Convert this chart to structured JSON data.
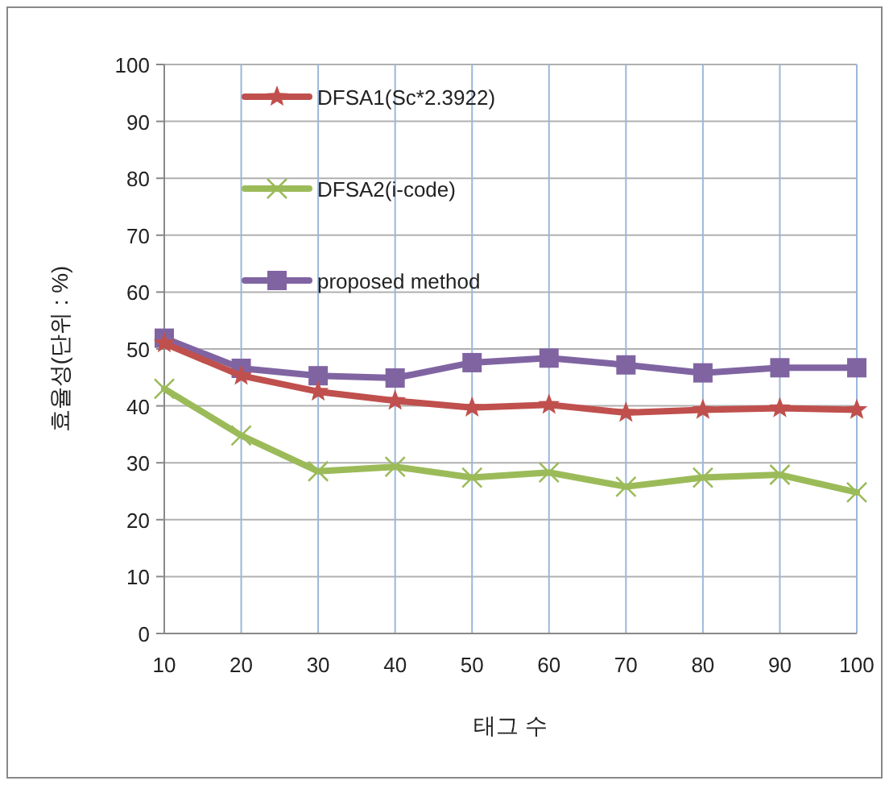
{
  "chart_data": {
    "type": "line",
    "x": [
      10,
      20,
      30,
      40,
      50,
      60,
      70,
      80,
      90,
      100
    ],
    "xlabel": "태그 수",
    "ylabel": "효율성(단위 : %)",
    "xlim": [
      10,
      100
    ],
    "xticks": [
      10,
      20,
      30,
      40,
      50,
      60,
      70,
      80,
      90,
      100
    ],
    "ylim": [
      0,
      100
    ],
    "yticks": [
      0,
      10,
      20,
      30,
      40,
      50,
      60,
      70,
      80,
      90,
      100
    ],
    "grid": true,
    "legend": "top left",
    "line_style": "solid",
    "series": [
      {
        "name": "DFSA1(Sc*2.3922)",
        "color": "#c0504d",
        "marker": "star",
        "values": [
          51,
          45.3,
          42.5,
          40.9,
          39.7,
          40.2,
          38.8,
          39.3,
          39.6,
          39.3
        ]
      },
      {
        "name": "DFSA2(i-code)",
        "color": "#9bbb59",
        "marker": "cross",
        "values": [
          43,
          34.8,
          28.5,
          29.3,
          27.4,
          28.3,
          25.8,
          27.4,
          27.9,
          24.8
        ]
      },
      {
        "name": "proposed method",
        "color": "#8064a2",
        "marker": "square",
        "values": [
          51.9,
          46.6,
          45.3,
          44.9,
          47.6,
          48.4,
          47.2,
          45.8,
          46.7,
          46.7
        ]
      }
    ]
  }
}
